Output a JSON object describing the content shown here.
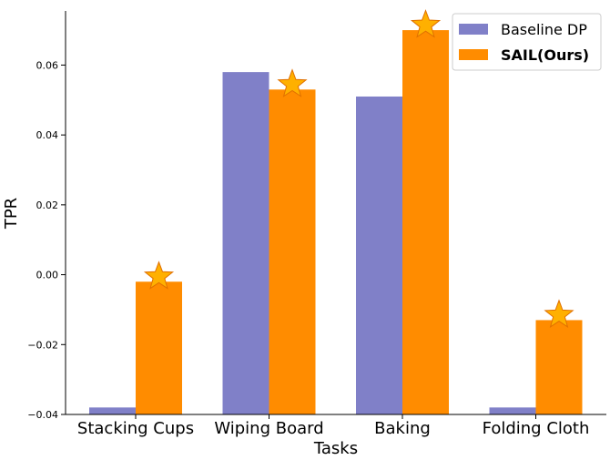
{
  "chart_data": {
    "type": "bar",
    "categories": [
      "Stacking Cups",
      "Wiping Board",
      "Baking",
      "Folding Cloth"
    ],
    "series": [
      {
        "name": "Baseline DP",
        "values": [
          -0.038,
          0.058,
          0.051,
          -0.038
        ],
        "color": "#8080c8"
      },
      {
        "name": "SAIL(Ours)",
        "values": [
          -0.002,
          0.053,
          0.07,
          -0.013
        ],
        "color": "#ff8c00"
      }
    ],
    "xlabel": "Tasks",
    "ylabel": "TPR",
    "ylim": [
      -0.04,
      0.0755
    ],
    "yticks": [
      -0.04,
      -0.02,
      0.0,
      0.02,
      0.04,
      0.06
    ],
    "ytick_labels": [
      "−0.04",
      "−0.02",
      "0.00",
      "0.02",
      "0.04",
      "0.06"
    ],
    "grid": false,
    "legend_placement": "top-right",
    "star_markers": {
      "series": "SAIL(Ours)",
      "color": "#ffb000"
    }
  }
}
